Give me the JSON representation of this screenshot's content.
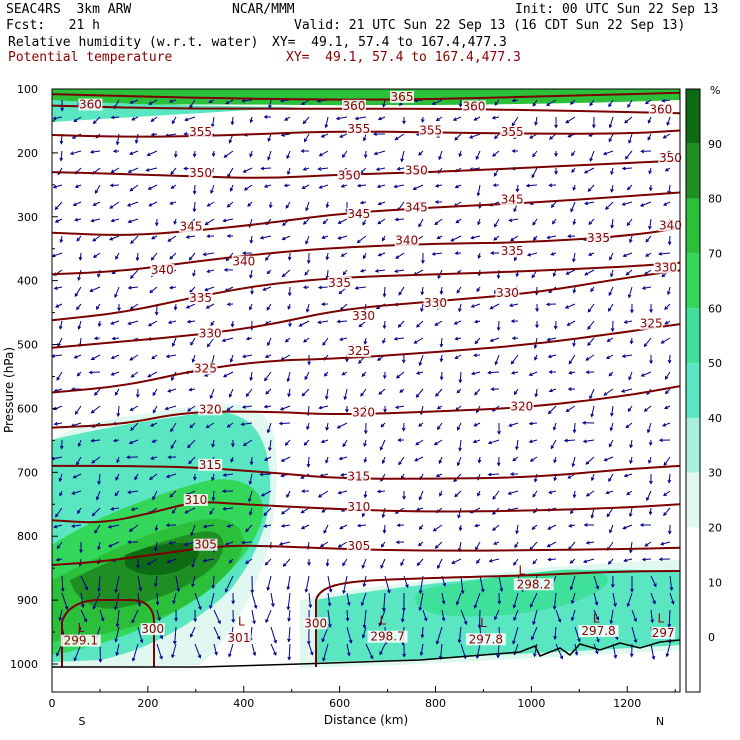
{
  "header": {
    "model": "SEAC4RS  3km ARW",
    "org": "NCAR/MMM",
    "init": "Init: 00 UTC Sun 22 Sep 13",
    "fcst": "Fcst:   21 h",
    "valid": "Valid: 21 UTC Sun 22 Sep 13 (16 CDT Sun 22 Sep 13)",
    "field1": "Relative humidity (w.r.t. water)",
    "field1_xy": "XY=  49.1, 57.4 to 167.4,477.3",
    "field2": "Potential temperature",
    "field2_xy": "XY=  49.1, 57.4 to 167.4,477.3"
  },
  "colors": {
    "contour": "#7a0000",
    "wind": "#00008b",
    "terrain": "#000000",
    "rh_scale": [
      "#ffffff",
      "#ffffff",
      "#ffffff",
      "#e0f8ef",
      "#a8f0dd",
      "#59e6c0",
      "#3fe09a",
      "#33d85a",
      "#2cbf3a",
      "#1f8f24",
      "#0d6b14"
    ]
  },
  "chart_data": {
    "type": "contour-cross-section",
    "xlabel": "Distance (km)",
    "ylabel": "Pressure (hPa)",
    "xlim": [
      0,
      1310
    ],
    "ylim": [
      1000,
      100
    ],
    "x_ticks": [
      0,
      200,
      400,
      600,
      800,
      1000,
      1200
    ],
    "y_ticks": [
      100,
      200,
      300,
      400,
      500,
      600,
      700,
      800,
      900,
      1000
    ],
    "x_end_labels": {
      "left": "S",
      "right": "N"
    },
    "colorbar": {
      "unit": "%",
      "ticks": [
        90,
        80,
        70,
        60,
        50,
        40,
        30,
        20,
        10,
        0
      ]
    },
    "isentropes": [
      {
        "theta": 365,
        "points": [
          [
            0,
            108
          ],
          [
            300,
            114
          ],
          [
            600,
            117
          ],
          [
            800,
            116
          ],
          [
            1000,
            112
          ],
          [
            1310,
            106
          ]
        ]
      },
      {
        "theta": 360,
        "points": [
          [
            0,
            126
          ],
          [
            200,
            130
          ],
          [
            400,
            131
          ],
          [
            600,
            131
          ],
          [
            800,
            131
          ],
          [
            1000,
            133
          ],
          [
            1200,
            136
          ],
          [
            1310,
            138
          ]
        ]
      },
      {
        "theta": 355,
        "points": [
          [
            0,
            172
          ],
          [
            150,
            175
          ],
          [
            300,
            174
          ],
          [
            450,
            170
          ],
          [
            600,
            166
          ],
          [
            800,
            168
          ],
          [
            1000,
            170
          ],
          [
            1200,
            170
          ],
          [
            1310,
            165
          ]
        ]
      },
      {
        "theta": 350,
        "points": [
          [
            0,
            230
          ],
          [
            150,
            233
          ],
          [
            300,
            237
          ],
          [
            450,
            240
          ],
          [
            600,
            234
          ],
          [
            800,
            230
          ],
          [
            1000,
            223
          ],
          [
            1200,
            216
          ],
          [
            1310,
            212
          ]
        ]
      },
      {
        "theta": 345,
        "points": [
          [
            0,
            325
          ],
          [
            150,
            330
          ],
          [
            300,
            322
          ],
          [
            450,
            310
          ],
          [
            600,
            295
          ],
          [
            800,
            285
          ],
          [
            1000,
            278
          ],
          [
            1200,
            268
          ],
          [
            1310,
            262
          ]
        ]
      },
      {
        "theta": 340,
        "points": [
          [
            0,
            390
          ],
          [
            150,
            385
          ],
          [
            300,
            370
          ],
          [
            450,
            357
          ],
          [
            600,
            348
          ],
          [
            800,
            342
          ],
          [
            1000,
            340
          ],
          [
            1200,
            330
          ],
          [
            1310,
            318
          ]
        ]
      },
      {
        "theta": 335,
        "points": [
          [
            0,
            462
          ],
          [
            150,
            450
          ],
          [
            300,
            425
          ],
          [
            450,
            405
          ],
          [
            600,
            395
          ],
          [
            800,
            390
          ],
          [
            1000,
            385
          ],
          [
            1200,
            378
          ],
          [
            1310,
            372
          ]
        ]
      },
      {
        "theta": 330,
        "points": [
          [
            0,
            505
          ],
          [
            150,
            495
          ],
          [
            300,
            485
          ],
          [
            450,
            470
          ],
          [
            600,
            445
          ],
          [
            800,
            432
          ],
          [
            1000,
            420
          ],
          [
            1200,
            395
          ],
          [
            1310,
            384
          ]
        ]
      },
      {
        "theta": 325,
        "points": [
          [
            0,
            575
          ],
          [
            150,
            565
          ],
          [
            300,
            540
          ],
          [
            450,
            525
          ],
          [
            600,
            522
          ],
          [
            800,
            512
          ],
          [
            1000,
            500
          ],
          [
            1200,
            480
          ],
          [
            1310,
            468
          ]
        ]
      },
      {
        "theta": 320,
        "points": [
          [
            0,
            630
          ],
          [
            150,
            625
          ],
          [
            280,
            605
          ],
          [
            450,
            605
          ],
          [
            600,
            610
          ],
          [
            800,
            605
          ],
          [
            1000,
            598
          ],
          [
            1200,
            580
          ],
          [
            1310,
            565
          ]
        ]
      },
      {
        "theta": 315,
        "points": [
          [
            0,
            690
          ],
          [
            150,
            690
          ],
          [
            300,
            692
          ],
          [
            450,
            700
          ],
          [
            600,
            710
          ],
          [
            800,
            710
          ],
          [
            1000,
            708
          ],
          [
            1200,
            695
          ],
          [
            1310,
            690
          ]
        ]
      },
      {
        "theta": 310,
        "points": [
          [
            0,
            775
          ],
          [
            100,
            780
          ],
          [
            200,
            765
          ],
          [
            300,
            745
          ],
          [
            400,
            750
          ],
          [
            600,
            758
          ],
          [
            800,
            762
          ],
          [
            1000,
            760
          ],
          [
            1200,
            755
          ],
          [
            1310,
            750
          ]
        ]
      },
      {
        "theta": 305,
        "points": [
          [
            0,
            845
          ],
          [
            100,
            840
          ],
          [
            200,
            830
          ],
          [
            350,
            815
          ],
          [
            450,
            815
          ],
          [
            600,
            820
          ],
          [
            800,
            823
          ],
          [
            1000,
            822
          ],
          [
            1200,
            820
          ],
          [
            1310,
            818
          ]
        ]
      }
    ],
    "contour_labels": [
      {
        "text": "365",
        "x": 730,
        "p": 117
      },
      {
        "text": "360",
        "x": 80,
        "p": 129
      },
      {
        "text": "360",
        "x": 630,
        "p": 131
      },
      {
        "text": "360",
        "x": 880,
        "p": 132
      },
      {
        "text": "360",
        "x": 1270,
        "p": 137
      },
      {
        "text": "355",
        "x": 310,
        "p": 172
      },
      {
        "text": "355",
        "x": 640,
        "p": 167
      },
      {
        "text": "355",
        "x": 790,
        "p": 170
      },
      {
        "text": "355",
        "x": 960,
        "p": 172
      },
      {
        "text": "350",
        "x": 310,
        "p": 236
      },
      {
        "text": "350",
        "x": 620,
        "p": 240
      },
      {
        "text": "350",
        "x": 760,
        "p": 232
      },
      {
        "text": "350",
        "x": 1290,
        "p": 213
      },
      {
        "text": "345",
        "x": 290,
        "p": 320
      },
      {
        "text": "345",
        "x": 640,
        "p": 300
      },
      {
        "text": "345",
        "x": 760,
        "p": 290
      },
      {
        "text": "345",
        "x": 960,
        "p": 278
      },
      {
        "text": "340",
        "x": 230,
        "p": 388
      },
      {
        "text": "340",
        "x": 400,
        "p": 375
      },
      {
        "text": "340",
        "x": 740,
        "p": 342
      },
      {
        "text": "340",
        "x": 1290,
        "p": 318
      },
      {
        "text": "335",
        "x": 310,
        "p": 432
      },
      {
        "text": "335",
        "x": 600,
        "p": 408
      },
      {
        "text": "335",
        "x": 960,
        "p": 358
      },
      {
        "text": "335",
        "x": 1140,
        "p": 338
      },
      {
        "text": "330",
        "x": 330,
        "p": 487
      },
      {
        "text": "330",
        "x": 650,
        "p": 460
      },
      {
        "text": "330",
        "x": 800,
        "p": 440
      },
      {
        "text": "330",
        "x": 950,
        "p": 424
      },
      {
        "text": "330",
        "x": 1280,
        "p": 384
      },
      {
        "text": "325",
        "x": 320,
        "p": 542
      },
      {
        "text": "325",
        "x": 640,
        "p": 515
      },
      {
        "text": "325",
        "x": 1250,
        "p": 472
      },
      {
        "text": "320",
        "x": 330,
        "p": 606
      },
      {
        "text": "320",
        "x": 650,
        "p": 611
      },
      {
        "text": "320",
        "x": 980,
        "p": 602
      },
      {
        "text": "315",
        "x": 330,
        "p": 693
      },
      {
        "text": "315",
        "x": 640,
        "p": 711
      },
      {
        "text": "310",
        "x": 300,
        "p": 748
      },
      {
        "text": "310",
        "x": 640,
        "p": 759
      },
      {
        "text": "305",
        "x": 320,
        "p": 818
      },
      {
        "text": "305",
        "x": 640,
        "p": 820
      },
      {
        "text": "300",
        "x": 210,
        "p": 950
      },
      {
        "text": "300",
        "x": 550,
        "p": 941
      },
      {
        "text": "298.2",
        "x": 1005,
        "p": 880
      },
      {
        "text": "298.7",
        "x": 700,
        "p": 962
      },
      {
        "text": "297.8",
        "x": 905,
        "p": 966
      },
      {
        "text": "297.8",
        "x": 1140,
        "p": 953
      },
      {
        "text": "299.1",
        "x": 60,
        "p": 968
      },
      {
        "text": "301",
        "x": 390,
        "p": 964
      },
      {
        "text": "297",
        "x": 1275,
        "p": 956
      }
    ],
    "lows": [
      {
        "x": 60,
        "p": 950
      },
      {
        "x": 395,
        "p": 940
      },
      {
        "x": 690,
        "p": 938
      },
      {
        "x": 900,
        "p": 942
      },
      {
        "x": 980,
        "p": 860
      },
      {
        "x": 1135,
        "p": 935
      },
      {
        "x": 1270,
        "p": 935
      }
    ]
  }
}
